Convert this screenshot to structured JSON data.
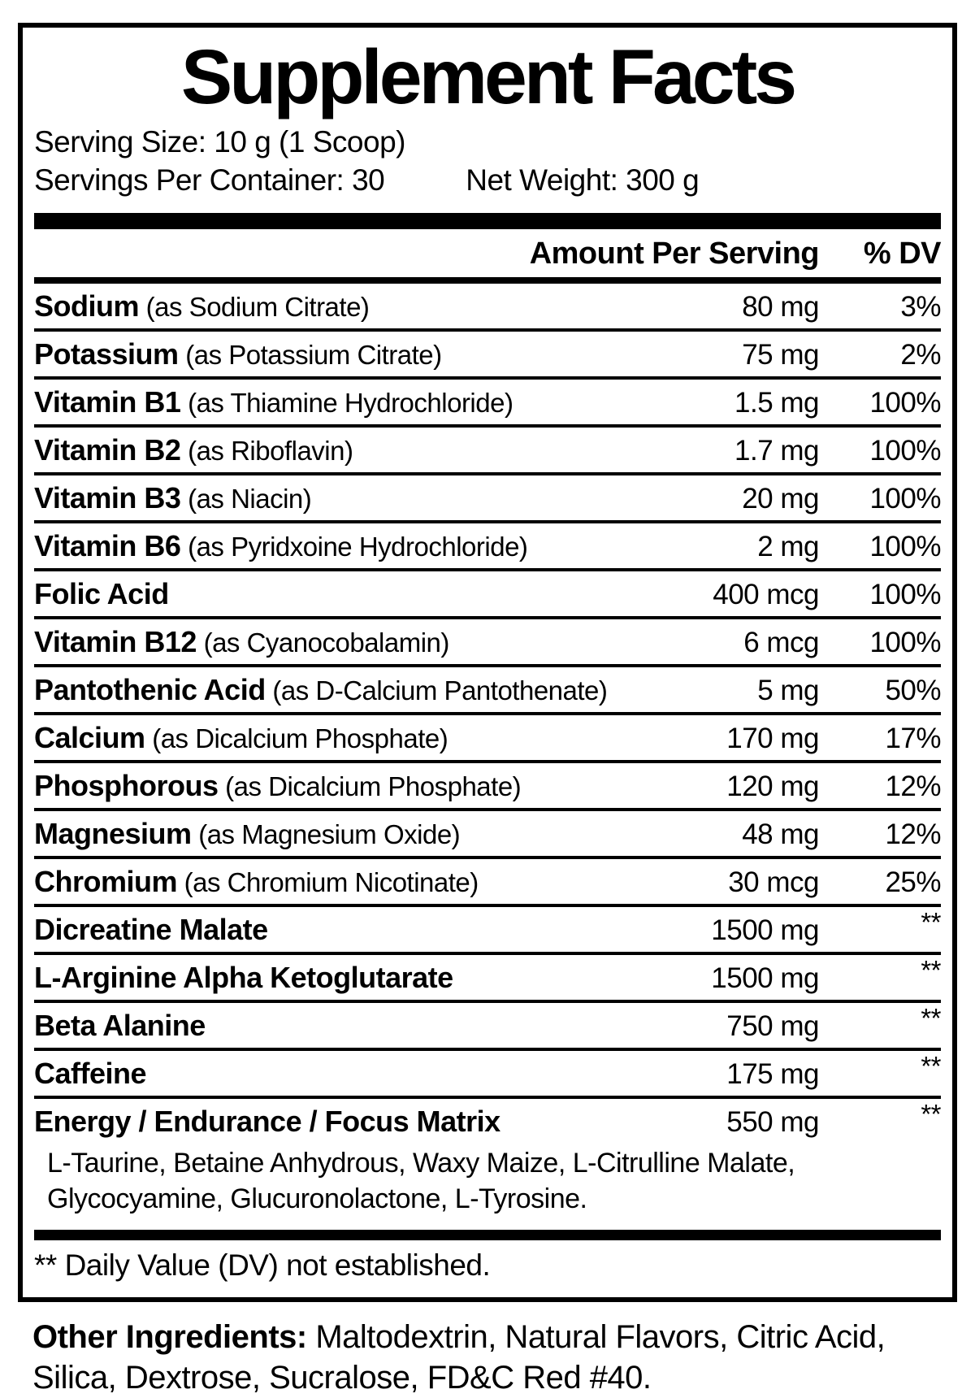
{
  "label": {
    "title": "Supplement Facts",
    "serving_size": "Serving Size: 10 g (1 Scoop)",
    "servings_per_container": "Servings Per Container: 30",
    "net_weight": "Net Weight: 300 g",
    "columns": {
      "amount": "Amount Per Serving",
      "dv": "% DV"
    },
    "rows": [
      {
        "name": "Sodium",
        "detail": "(as Sodium Citrate)",
        "amount": "80 mg",
        "dv": "3%"
      },
      {
        "name": "Potassium",
        "detail": "(as Potassium Citrate)",
        "amount": "75 mg",
        "dv": "2%"
      },
      {
        "name": "Vitamin B1",
        "detail": "(as Thiamine Hydrochloride)",
        "amount": "1.5 mg",
        "dv": "100%"
      },
      {
        "name": "Vitamin B2",
        "detail": "(as Riboflavin)",
        "amount": "1.7 mg",
        "dv": "100%"
      },
      {
        "name": "Vitamin B3",
        "detail": "(as Niacin)",
        "amount": "20 mg",
        "dv": "100%"
      },
      {
        "name": "Vitamin B6",
        "detail": "(as Pyridxoine Hydrochloride)",
        "amount": "2 mg",
        "dv": "100%"
      },
      {
        "name": "Folic Acid",
        "detail": "",
        "amount": "400 mcg",
        "dv": "100%"
      },
      {
        "name": "Vitamin B12",
        "detail": "(as Cyanocobalamin)",
        "amount": "6 mcg",
        "dv": "100%"
      },
      {
        "name": "Pantothenic Acid",
        "detail": "(as D-Calcium Pantothenate)",
        "amount": "5 mg",
        "dv": "50%"
      },
      {
        "name": "Calcium",
        "detail": "(as Dicalcium Phosphate)",
        "amount": "170 mg",
        "dv": "17%"
      },
      {
        "name": "Phosphorous",
        "detail": "(as Dicalcium Phosphate)",
        "amount": "120 mg",
        "dv": "12%"
      },
      {
        "name": "Magnesium",
        "detail": "(as Magnesium Oxide)",
        "amount": "48 mg",
        "dv": "12%"
      },
      {
        "name": "Chromium",
        "detail": "(as Chromium Nicotinate)",
        "amount": "30 mcg",
        "dv": "25%"
      },
      {
        "name": "Dicreatine Malate",
        "detail": "",
        "amount": "1500 mg",
        "dv": "**"
      },
      {
        "name": "L-Arginine Alpha Ketoglutarate",
        "detail": "",
        "amount": "1500 mg",
        "dv": "**"
      },
      {
        "name": "Beta Alanine",
        "detail": "",
        "amount": "750 mg",
        "dv": "**"
      },
      {
        "name": "Caffeine",
        "detail": "",
        "amount": "175 mg",
        "dv": "**"
      },
      {
        "name": "Energy / Endurance / Focus Matrix",
        "detail": "",
        "amount": "550 mg",
        "dv": "**"
      }
    ],
    "matrix_sub_ingredients": "L-Taurine, Betaine Anhydrous, Waxy Maize, L-Citrulline Malate, Glycocyamine, Glucuronolactone, L-Tyrosine.",
    "footnote": "** Daily Value (DV) not established.",
    "other_ingredients_label": "Other Ingredients:",
    "other_ingredients_text": "Maltodextrin, Natural Flavors, Citric Acid, Silica, Dextrose, Sucralose, FD&C Red #40.",
    "colors": {
      "ink": "#000000",
      "background": "#ffffff"
    }
  }
}
